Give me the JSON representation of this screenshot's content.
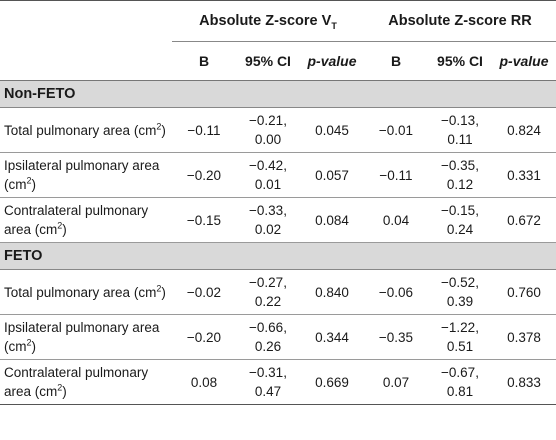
{
  "header": {
    "group1": "Absolute Z-score V",
    "group1_sub": "T",
    "group2": "Absolute Z-score RR",
    "cols": [
      "B",
      "95% CI",
      "p-value",
      "B",
      "95% CI",
      "p-value"
    ]
  },
  "sections": [
    {
      "title": "Non-FETO",
      "rows": [
        {
          "label": "Total pulmonary area (cm",
          "b1": "−0.11",
          "ci1a": "−0.21,",
          "ci1b": "0.00",
          "p1": "0.045",
          "b2": "−0.01",
          "ci2a": "−0.13,",
          "ci2b": "0.11",
          "p2": "0.824"
        },
        {
          "label": "Ipsilateral pulmonary area (cm",
          "b1": "−0.20",
          "ci1a": "−0.42,",
          "ci1b": "0.01",
          "p1": "0.057",
          "b2": "−0.11",
          "ci2a": "−0.35,",
          "ci2b": "0.12",
          "p2": "0.331"
        },
        {
          "label": "Contralateral pulmonary area (cm",
          "b1": "−0.15",
          "ci1a": "−0.33,",
          "ci1b": "0.02",
          "p1": "0.084",
          "b2": "0.04",
          "ci2a": "−0.15,",
          "ci2b": "0.24",
          "p2": "0.672"
        }
      ]
    },
    {
      "title": "FETO",
      "rows": [
        {
          "label": "Total pulmonary area (cm",
          "b1": "−0.02",
          "ci1a": "−0.27,",
          "ci1b": "0.22",
          "p1": "0.840",
          "b2": "−0.06",
          "ci2a": "−0.52,",
          "ci2b": "0.39",
          "p2": "0.760"
        },
        {
          "label": "Ipsilateral pulmonary area (cm",
          "b1": "−0.20",
          "ci1a": "−0.66,",
          "ci1b": "0.26",
          "p1": "0.344",
          "b2": "−0.35",
          "ci2a": "−1.22,",
          "ci2b": "0.51",
          "p2": "0.378"
        },
        {
          "label": "Contralateral pulmonary area (cm",
          "b1": "0.08",
          "ci1a": "−0.31,",
          "ci1b": "0.47",
          "p1": "0.669",
          "b2": "0.07",
          "ci2a": "−0.67,",
          "ci2b": "0.81",
          "p2": "0.833"
        }
      ]
    }
  ]
}
